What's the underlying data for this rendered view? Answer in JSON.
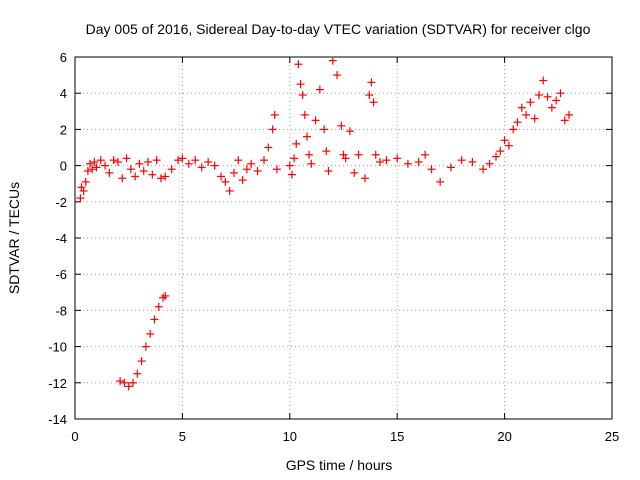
{
  "chart_data": {
    "type": "scatter",
    "title": "Day 005 of 2016, Sidereal Day-to-day VTEC variation (SDTVAR) for receiver clgo",
    "xlabel": "GPS time / hours",
    "ylabel": "SDTVAR / TECUs",
    "xlim": [
      0,
      25
    ],
    "ylim": [
      -14,
      6
    ],
    "xticks": [
      "0",
      "5",
      "10",
      "15",
      "20",
      "25"
    ],
    "yticks": [
      "-14",
      "-12",
      "-10",
      "-8",
      "-6",
      "-4",
      "-2",
      "0",
      "2",
      "4",
      "6"
    ],
    "grid": true,
    "marker": "plus",
    "marker_color": "#ff0000",
    "series": [
      {
        "name": "SDTVAR",
        "x": [
          0.25,
          0.3,
          0.4,
          0.5,
          0.6,
          0.7,
          0.8,
          0.9,
          1.0,
          1.2,
          1.4,
          1.6,
          1.8,
          2.0,
          2.2,
          2.4,
          2.6,
          2.8,
          3.0,
          3.2,
          3.4,
          3.6,
          3.8,
          4.0,
          4.2,
          4.5,
          4.8,
          5.0,
          5.3,
          5.6,
          5.9,
          6.2,
          6.5,
          6.8,
          7.0,
          7.2,
          7.4,
          7.6,
          7.8,
          8.0,
          8.2,
          8.5,
          8.8,
          9.0,
          9.2,
          9.3,
          9.4,
          10.0,
          10.1,
          10.2,
          10.3,
          10.4,
          10.5,
          10.6,
          10.7,
          10.8,
          10.9,
          11.0,
          11.2,
          11.4,
          11.6,
          11.7,
          11.8,
          12.0,
          12.2,
          12.4,
          12.5,
          12.6,
          12.8,
          13.0,
          13.2,
          13.5,
          13.7,
          13.8,
          13.9,
          14.0,
          14.2,
          14.5,
          15.0,
          15.5,
          16.0,
          16.3,
          16.6,
          17.0,
          17.5,
          18.0,
          18.5,
          19.0,
          19.3,
          19.6,
          19.8,
          20.0,
          20.2,
          20.4,
          20.6,
          20.8,
          21.0,
          21.2,
          21.4,
          21.6,
          21.8,
          22.0,
          22.2,
          22.4,
          22.6,
          22.8,
          23.0,
          2.1,
          2.3,
          2.5,
          2.7,
          2.9,
          3.1,
          3.3,
          3.5,
          3.7,
          3.9,
          4.1,
          4.2
        ],
        "values": [
          -1.8,
          -1.2,
          -1.4,
          -0.9,
          -0.3,
          0.1,
          -0.2,
          0.2,
          -0.1,
          0.3,
          0.0,
          -0.4,
          0.3,
          0.2,
          -0.7,
          0.4,
          -0.2,
          -0.6,
          0.1,
          -0.3,
          0.2,
          -0.5,
          0.3,
          -0.7,
          -0.6,
          -0.2,
          0.3,
          0.4,
          0.1,
          0.3,
          -0.1,
          0.2,
          0.0,
          -0.6,
          -0.9,
          -1.4,
          -0.4,
          0.3,
          -0.8,
          -0.2,
          0.1,
          -0.3,
          0.3,
          1.0,
          2.0,
          2.8,
          -0.2,
          0.0,
          -0.5,
          0.4,
          1.2,
          5.6,
          4.5,
          3.9,
          2.8,
          1.6,
          0.6,
          0.1,
          2.5,
          4.2,
          2.0,
          0.8,
          -0.3,
          5.8,
          5.0,
          2.2,
          0.6,
          0.4,
          1.9,
          -0.4,
          0.6,
          -0.7,
          3.9,
          4.6,
          3.5,
          0.6,
          0.2,
          0.3,
          0.4,
          0.1,
          0.2,
          0.6,
          -0.2,
          -0.9,
          -0.1,
          0.3,
          0.2,
          -0.2,
          0.1,
          0.5,
          0.8,
          1.4,
          1.1,
          2.0,
          2.4,
          3.2,
          2.8,
          3.5,
          2.6,
          3.9,
          4.7,
          3.8,
          3.2,
          3.6,
          4.0,
          2.5,
          2.8,
          -11.9,
          -12.0,
          -12.2,
          -12.0,
          -11.5,
          -10.8,
          -10.0,
          -9.3,
          -8.5,
          -7.8,
          -7.3,
          -7.2
        ]
      }
    ]
  }
}
